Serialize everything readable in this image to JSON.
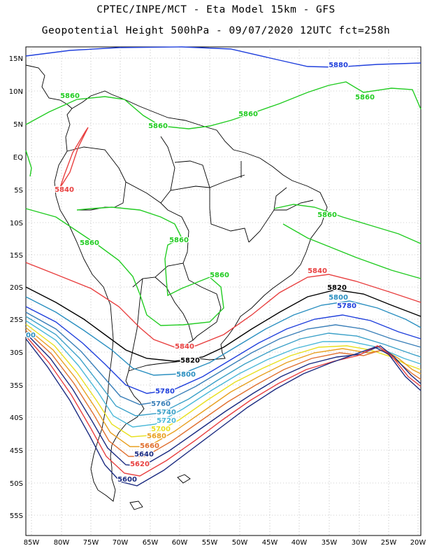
{
  "header": {
    "line1": "CPTEC/INPE/MCT -  Eta Model 15km - GFS",
    "line2": "Geopotential Height 500hPa - 09/07/2020 12UTC fct=258h"
  },
  "axes": {
    "lat_labels": [
      "15N",
      "10N",
      "5N",
      "EQ",
      "5S",
      "10S",
      "15S",
      "20S",
      "25S",
      "30S",
      "35S",
      "40S",
      "45S",
      "50S",
      "55S"
    ],
    "lon_labels": [
      "85W",
      "80W",
      "75W",
      "70W",
      "65W",
      "60W",
      "55W",
      "50W",
      "45W",
      "40W",
      "35W",
      "30W",
      "25W",
      "20W"
    ]
  },
  "contour_colors": {
    "5880": "#1f3fdc",
    "5860": "#22cc22",
    "5840": "#e84040",
    "5820": "#000000",
    "5800": "#2a8fc0",
    "5780": "#1f3fdc",
    "5760": "#3a7fb8",
    "5740": "#3aa0c8",
    "5720": "#4ab8d8",
    "5700": "#e8e020",
    "5680": "#e8a020",
    "5660": "#e07030",
    "5640": "#1a2a80",
    "5620": "#e84040",
    "5600": "#1a2a80"
  },
  "contour_labels": [
    {
      "text": "5880"
    },
    {
      "text": "5860"
    },
    {
      "text": "5860"
    },
    {
      "text": "5860"
    },
    {
      "text": "5860"
    },
    {
      "text": "5860"
    },
    {
      "text": "5860"
    },
    {
      "text": "5860"
    },
    {
      "text": "5860"
    },
    {
      "text": "5840"
    },
    {
      "text": "5840"
    },
    {
      "text": "5840"
    },
    {
      "text": "5820"
    },
    {
      "text": "5820"
    },
    {
      "text": "5800"
    },
    {
      "text": "5800"
    },
    {
      "text": "5780"
    },
    {
      "text": "5780"
    },
    {
      "text": "5760"
    },
    {
      "text": "5740"
    },
    {
      "text": "5720"
    },
    {
      "text": "5700"
    },
    {
      "text": "5680"
    },
    {
      "text": "5660"
    },
    {
      "text": "5640"
    },
    {
      "text": "5620"
    },
    {
      "text": "5600"
    },
    {
      "text": "00"
    }
  ]
}
